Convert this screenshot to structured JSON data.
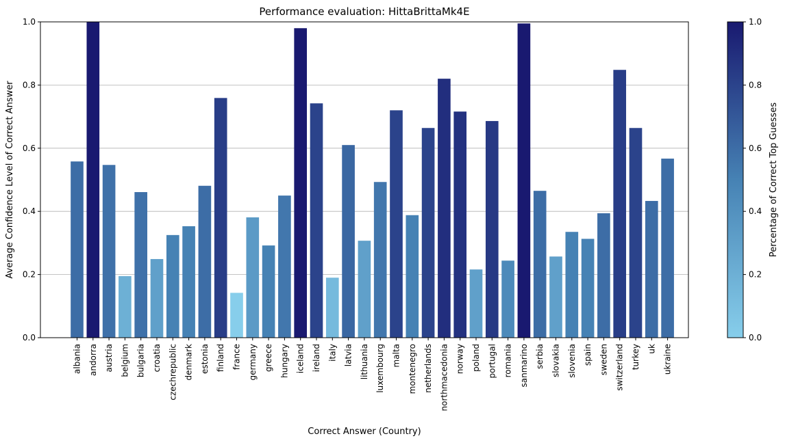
{
  "chart_data": {
    "type": "bar",
    "title": "Performance evaluation: HittaBrittaMk4E",
    "xlabel": "Correct Answer (Country)",
    "ylabel": "Average Confidence Level of Correct Answer",
    "ylim": [
      0,
      1.0
    ],
    "yticks": [
      "0.0",
      "0.2",
      "0.4",
      "0.6",
      "0.8",
      "1.0"
    ],
    "grid": "horizontal",
    "categories": [
      "albania",
      "andorra",
      "austria",
      "belgium",
      "bulgaria",
      "croatia",
      "czechrepublic",
      "denmark",
      "estonia",
      "finland",
      "france",
      "germany",
      "greece",
      "hungary",
      "iceland",
      "ireland",
      "italy",
      "latvia",
      "lithuania",
      "luxembourg",
      "malta",
      "montenegro",
      "netherlands",
      "northmacedonia",
      "norway",
      "poland",
      "portugal",
      "romania",
      "sanmarino",
      "serbia",
      "slovakia",
      "slovenia",
      "spain",
      "sweden",
      "switzerland",
      "turkey",
      "uk",
      "ukraine"
    ],
    "values": [
      0.558,
      1.0,
      0.547,
      0.195,
      0.461,
      0.249,
      0.325,
      0.353,
      0.481,
      0.759,
      0.142,
      0.381,
      0.292,
      0.45,
      0.98,
      0.742,
      0.19,
      0.61,
      0.307,
      0.493,
      0.72,
      0.388,
      0.664,
      0.82,
      0.716,
      0.216,
      0.686,
      0.244,
      0.995,
      0.465,
      0.257,
      0.335,
      0.313,
      0.394,
      0.848,
      0.664,
      0.433,
      0.567
    ],
    "color_values": [
      0.6,
      1.0,
      0.58,
      0.2,
      0.58,
      0.3,
      0.5,
      0.5,
      0.6,
      0.83,
      0.0,
      0.34,
      0.5,
      0.55,
      1.0,
      0.8,
      0.13,
      0.63,
      0.3,
      0.55,
      0.8,
      0.5,
      0.8,
      0.9,
      0.88,
      0.3,
      0.85,
      0.45,
      1.0,
      0.6,
      0.3,
      0.5,
      0.5,
      0.6,
      0.83,
      0.8,
      0.6,
      0.6
    ],
    "colorbar": {
      "label": "Percentage of Correct Top Guesses",
      "range": [
        0,
        1.0
      ],
      "ticks": [
        "0.0",
        "0.2",
        "0.4",
        "0.6",
        "0.8",
        "1.0"
      ],
      "color_low": "#87ceeb",
      "color_high": "#191970"
    }
  }
}
